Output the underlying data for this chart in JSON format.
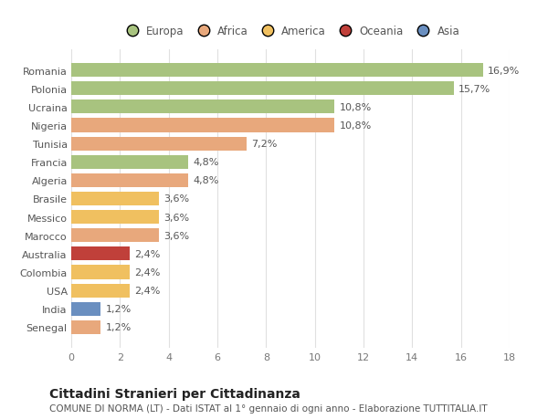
{
  "categories": [
    "Romania",
    "Polonia",
    "Ucraina",
    "Nigeria",
    "Tunisia",
    "Francia",
    "Algeria",
    "Brasile",
    "Messico",
    "Marocco",
    "Australia",
    "Colombia",
    "USA",
    "India",
    "Senegal"
  ],
  "values": [
    16.9,
    15.7,
    10.8,
    10.8,
    7.2,
    4.8,
    4.8,
    3.6,
    3.6,
    3.6,
    2.4,
    2.4,
    2.4,
    1.2,
    1.2
  ],
  "labels": [
    "16,9%",
    "15,7%",
    "10,8%",
    "10,8%",
    "7,2%",
    "4,8%",
    "4,8%",
    "3,6%",
    "3,6%",
    "3,6%",
    "2,4%",
    "2,4%",
    "2,4%",
    "1,2%",
    "1,2%"
  ],
  "bar_colors": [
    "#a8c37f",
    "#a8c37f",
    "#a8c37f",
    "#e8a87c",
    "#e8a87c",
    "#a8c37f",
    "#e8a87c",
    "#f0c060",
    "#f0c060",
    "#e8a87c",
    "#c0403a",
    "#f0c060",
    "#f0c060",
    "#6a8fc0",
    "#e8a87c"
  ],
  "continent_colors": {
    "Europa": "#a8c37f",
    "Africa": "#e8a87c",
    "America": "#f0c060",
    "Oceania": "#c0403a",
    "Asia": "#6a8fc0"
  },
  "xlim": [
    0,
    18
  ],
  "xticks": [
    0,
    2,
    4,
    6,
    8,
    10,
    12,
    14,
    16,
    18
  ],
  "title": "Cittadini Stranieri per Cittadinanza",
  "subtitle": "COMUNE DI NORMA (LT) - Dati ISTAT al 1° gennaio di ogni anno - Elaborazione TUTTITALIA.IT",
  "bg_color": "#ffffff",
  "grid_color": "#e0e0e0",
  "bar_height": 0.75,
  "label_fontsize": 8,
  "tick_fontsize": 8,
  "title_fontsize": 10,
  "subtitle_fontsize": 7.5,
  "legend_fontsize": 8.5
}
